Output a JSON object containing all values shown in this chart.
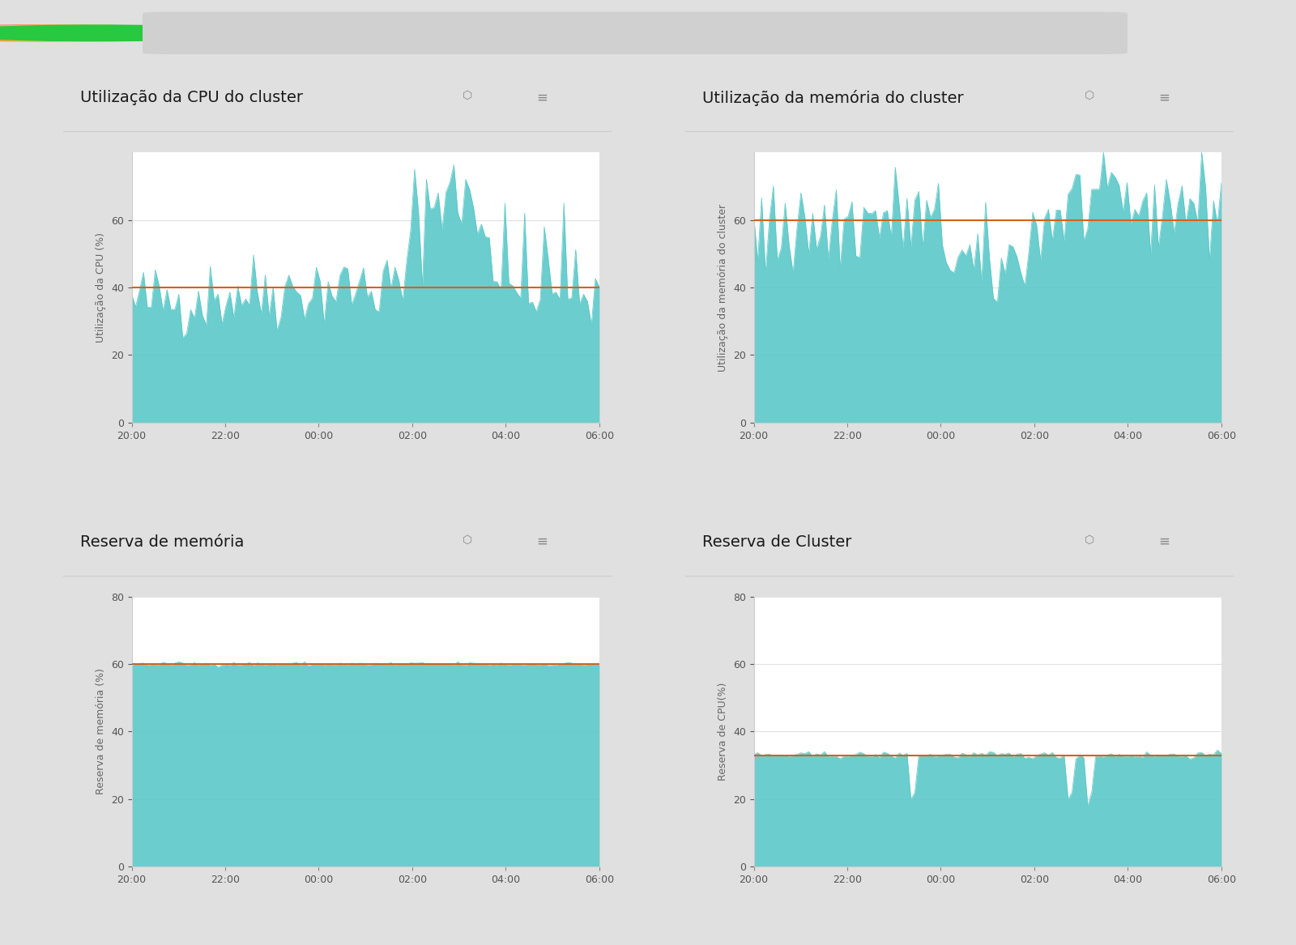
{
  "background_color": "#e8e8e8",
  "panel_bg": "#ffffff",
  "teal_color": "#5bc8c8",
  "orange_color": "#d4621a",
  "dark_line_color": "#222222",
  "grid_color": "#cccccc",
  "title_fontsize": 14,
  "label_fontsize": 9,
  "tick_fontsize": 9,
  "panels": [
    {
      "title": "Utilização da CPU do cluster",
      "ylabel": "Utilização da CPU (%)",
      "ylim": [
        0,
        80
      ],
      "yticks": [
        0,
        20,
        40,
        60
      ],
      "threshold": 40,
      "threshold_color": "#d4621a"
    },
    {
      "title": "Utilização da memória do cluster",
      "ylabel": "Utilização da memória do cluster",
      "ylim": [
        0,
        80
      ],
      "yticks": [
        0,
        20,
        40,
        60
      ],
      "threshold": 60,
      "threshold_color": "#d4621a"
    },
    {
      "title": "Reserva de memória",
      "ylabel": "Reserva de memória (%)",
      "ylim": [
        0,
        80
      ],
      "yticks": [
        0,
        20,
        40,
        60,
        80
      ],
      "threshold": 60,
      "threshold_color": "#d4621a"
    },
    {
      "title": "Reserva de Cluster",
      "ylabel": "Reserva de CPU(%)",
      "ylim": [
        0,
        80
      ],
      "yticks": [
        0,
        20,
        40,
        60,
        80
      ],
      "threshold": 33,
      "threshold_color": "#d4621a"
    }
  ],
  "xtick_labels": [
    "20:00",
    "22:00",
    "00:00",
    "02:00",
    "04:00",
    "06:00"
  ],
  "n_points": 120
}
